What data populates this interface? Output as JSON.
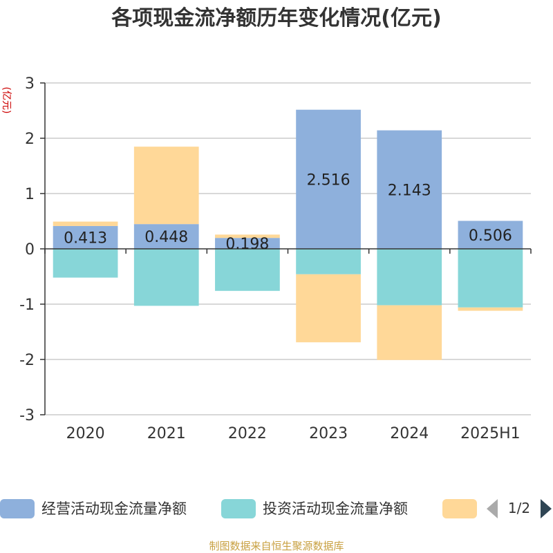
{
  "chart_data": {
    "type": "bar",
    "stacked": true,
    "title": "各项现金流净额历年变化情况(亿元)",
    "ylabel": "(亿元)",
    "ylim": [
      -3,
      3
    ],
    "yticks": [
      3,
      2,
      1,
      0,
      -1,
      -2,
      -3
    ],
    "yticks_text": [
      "3",
      "2",
      "1",
      "0",
      "-1",
      "-2",
      "-3"
    ],
    "grid": true,
    "categories": [
      "2020",
      "2021",
      "2022",
      "2023",
      "2024",
      "2025H1"
    ],
    "series": [
      {
        "name": "经营活动现金流量净额",
        "color": "#8eb0dc",
        "values": [
          0.413,
          0.448,
          0.198,
          2.516,
          2.143,
          0.506
        ],
        "labels": [
          "0.413",
          "0.448",
          "0.198",
          "2.516",
          "2.143",
          "0.506"
        ]
      },
      {
        "name": "投资活动现金流量净额",
        "color": "#87d6d8",
        "values": [
          -0.52,
          -1.03,
          -0.76,
          -0.46,
          -1.02,
          -1.06
        ]
      },
      {
        "name": "",
        "color": "#ffd898",
        "values": [
          0.08,
          1.4,
          0.06,
          -1.23,
          -0.99,
          -0.06
        ]
      }
    ],
    "legend_position": "bottom",
    "legend_page": "1/2"
  },
  "footer": {
    "source": "制图数据来自恒生聚源数据库"
  }
}
